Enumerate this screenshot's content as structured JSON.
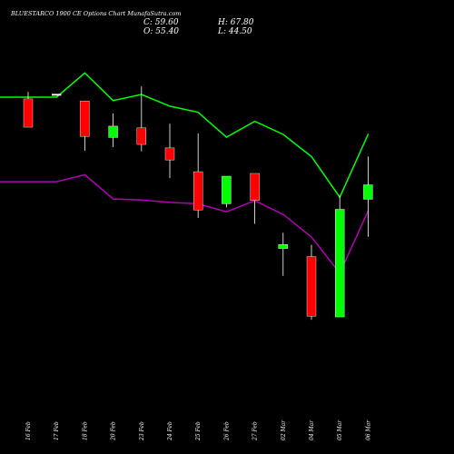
{
  "header": {
    "title": "BLUESTARCO 1900  CE Options  Chart MunafaSutra.com",
    "close_label": "C: 59.60",
    "high_label": "H: 67.80",
    "open_label": "O: 55.40",
    "low_label": "L: 44.50"
  },
  "chart_data": {
    "type": "candlestick",
    "categories": [
      "16 Feb",
      "17 Feb",
      "18 Feb",
      "20 Feb",
      "23 Feb",
      "24 Feb",
      "25 Feb",
      "26 Feb",
      "27 Feb",
      "02 Mar",
      "04 Mar",
      "05 Mar",
      "06 Mar"
    ],
    "candles": [
      {
        "open": 84.5,
        "high": 86.5,
        "low": 76.3,
        "close": 76.3,
        "color": "#ff0000"
      },
      {
        "open": 85.9,
        "high": 85.9,
        "low": 85.5,
        "close": 85.5,
        "color": "#ffffff"
      },
      {
        "open": 83.9,
        "high": 83.9,
        "low": 69.5,
        "close": 73.6,
        "color": "#ff0000"
      },
      {
        "open": 73.3,
        "high": 80.3,
        "low": 70.5,
        "close": 76.6,
        "color": "#00ff00"
      },
      {
        "open": 76.1,
        "high": 88.1,
        "low": 69.3,
        "close": 71.3,
        "color": "#ff0000"
      },
      {
        "open": 70.3,
        "high": 77.3,
        "low": 61.5,
        "close": 66.8,
        "color": "#ff0000"
      },
      {
        "open": 63.4,
        "high": 74.5,
        "low": 50.0,
        "close": 52.3,
        "color": "#ff0000"
      },
      {
        "open": 54.1,
        "high": 62.1,
        "low": 53.1,
        "close": 62.1,
        "color": "#00ff00"
      },
      {
        "open": 62.9,
        "high": 62.9,
        "low": 48.3,
        "close": 55.1,
        "color": "#ff0000"
      },
      {
        "open": 41.1,
        "high": 45.7,
        "low": 33.2,
        "close": 42.3,
        "color": "#00ff00"
      },
      {
        "open": 38.8,
        "high": 42.2,
        "low": 20.5,
        "close": 21.5,
        "color": "#ff0000"
      },
      {
        "open": 21.3,
        "high": 56.4,
        "low": 21.3,
        "close": 52.5,
        "color": "#00ff00"
      },
      {
        "open": 55.4,
        "high": 67.8,
        "low": 44.5,
        "close": 59.6,
        "color": "#00ff00"
      }
    ],
    "upper_band": [
      85.0,
      85.0,
      92.0,
      84.0,
      85.8,
      82.4,
      80.6,
      73.4,
      78.0,
      74.2,
      67.8,
      56.0,
      74.2
    ],
    "lower_band": [
      60.5,
      60.5,
      62.5,
      55.5,
      55.2,
      54.5,
      54.1,
      51.8,
      55.0,
      51.0,
      44.5,
      34.0,
      52.0
    ],
    "y_range": [
      0,
      100
    ],
    "colors": {
      "up": "#00ff00",
      "down": "#ff0000",
      "upper_band": "#00ff00",
      "lower_band": "#b000b0",
      "background": "#000000",
      "text": "#ffffff"
    }
  }
}
